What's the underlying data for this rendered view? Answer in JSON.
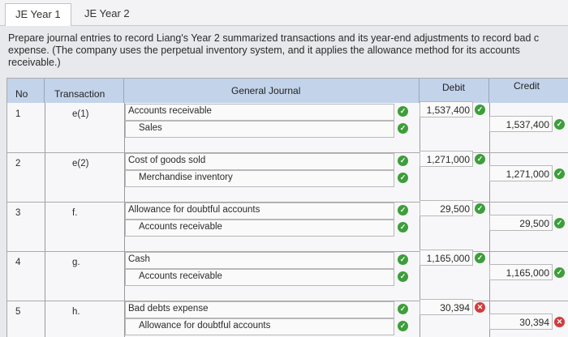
{
  "tabs": [
    "JE Year 1",
    "JE Year 2"
  ],
  "instructions": [
    "Prepare journal entries to record Liang's Year 2 summarized transactions and its year-end adjustments to record bad c",
    "expense. (The company uses the perpetual inventory system, and it applies the allowance method for its accounts",
    "receivable.)"
  ],
  "headers": {
    "no": "No",
    "transaction": "Transaction",
    "journal": "General Journal",
    "debit": "Debit",
    "credit": "Credit"
  },
  "icons": {
    "correct": "check-circle-icon",
    "incorrect": "x-circle-icon"
  },
  "colors": {
    "header": "#c3d3ea",
    "correct": "#3d9e3a",
    "incorrect": "#d23b3b"
  },
  "rows": [
    {
      "no": "1",
      "transaction": "e(1)",
      "debit_account": "Accounts receivable",
      "credit_account": "Sales",
      "debit": "1,537,400",
      "credit": "1,537,400",
      "debit_status": "correct",
      "credit_status": "correct"
    },
    {
      "no": "2",
      "transaction": "e(2)",
      "debit_account": "Cost of goods sold",
      "credit_account": "Merchandise inventory",
      "debit": "1,271,000",
      "credit": "1,271,000",
      "debit_status": "correct",
      "credit_status": "correct"
    },
    {
      "no": "3",
      "transaction": "f.",
      "debit_account": "Allowance for doubtful accounts",
      "credit_account": "Accounts receivable",
      "debit": "29,500",
      "credit": "29,500",
      "debit_status": "correct",
      "credit_status": "correct"
    },
    {
      "no": "4",
      "transaction": "g.",
      "debit_account": "Cash",
      "credit_account": "Accounts receivable",
      "debit": "1,165,000",
      "credit": "1,165,000",
      "debit_status": "correct",
      "credit_status": "correct"
    },
    {
      "no": "5",
      "transaction": "h.",
      "debit_account": "Bad debts expense",
      "credit_account": "Allowance for doubtful accounts",
      "debit": "30,394",
      "credit": "30,394",
      "debit_status": "incorrect",
      "credit_status": "incorrect"
    }
  ]
}
